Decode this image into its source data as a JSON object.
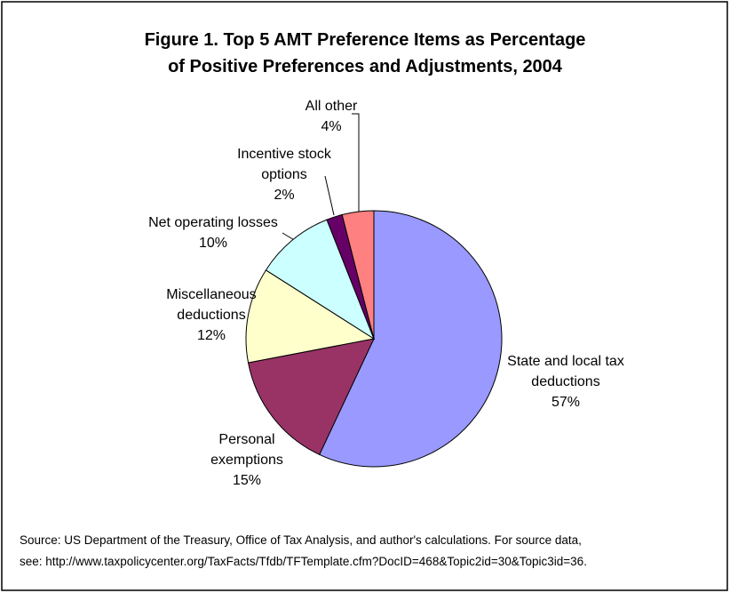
{
  "chart_data": {
    "type": "pie",
    "title": [
      "Figure 1.  Top 5 AMT Preference Items as Percentage",
      "of Positive Preferences and Adjustments, 2004"
    ],
    "categories": [
      "State and local tax deductions",
      "Personal exemptions",
      "Miscellaneous deductions",
      "Net operating losses",
      "Incentive stock options",
      "All other"
    ],
    "values": [
      57,
      15,
      12,
      10,
      2,
      4
    ],
    "value_labels": [
      "57%",
      "15%",
      "12%",
      "10%",
      "2%",
      "4%"
    ],
    "colors": [
      "#9999ff",
      "#993366",
      "#ffffcc",
      "#ccffff",
      "#660066",
      "#ff8080"
    ],
    "source": [
      "Source:  US Department of the Treasury, Office of Tax Analysis, and author's calculations.  For source data,",
      "see:  http://www.taxpolicycenter.org/TaxFacts/Tfdb/TFTemplate.cfm?DocID=468&Topic2id=30&Topic3id=36."
    ]
  }
}
